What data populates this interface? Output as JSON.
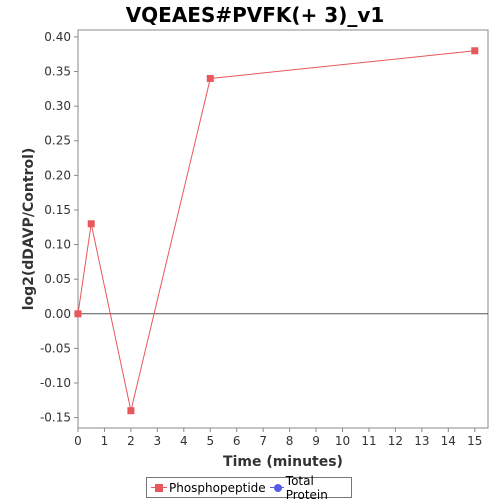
{
  "chart_data": {
    "type": "line",
    "title": "VQEAES#PVFK(+ 3)_v1",
    "xlabel": "Time (minutes)",
    "ylabel": "log2(dDAVP/Control)",
    "xlim": [
      0,
      15.5
    ],
    "ylim": [
      -0.165,
      0.41
    ],
    "xticks": [
      0,
      1,
      2,
      3,
      4,
      5,
      6,
      7,
      8,
      9,
      10,
      11,
      12,
      13,
      14,
      15
    ],
    "xtick_labels": [
      "0",
      "1",
      "2",
      "3",
      "4",
      "5",
      "6",
      "7",
      "8",
      "9",
      "10",
      "11",
      "12",
      "13",
      "14",
      "15"
    ],
    "yticks": [
      -0.15,
      -0.1,
      -0.05,
      0.0,
      0.05,
      0.1,
      0.15,
      0.2,
      0.25,
      0.3,
      0.35,
      0.4
    ],
    "ytick_labels": [
      "-0.15",
      "-0.10",
      "-0.05",
      "0.00",
      "0.05",
      "0.10",
      "0.15",
      "0.20",
      "0.25",
      "0.30",
      "0.35",
      "0.40"
    ],
    "zero_line": true,
    "grid": false,
    "legend_position": "bottom-center",
    "series": [
      {
        "name": "Phosphopeptide",
        "color": "#e8575a",
        "marker": "square",
        "x": [
          0,
          0.5,
          2,
          5,
          15
        ],
        "y": [
          0.0,
          0.13,
          -0.14,
          0.34,
          0.38
        ]
      },
      {
        "name": "Total Protein",
        "color": "#5a5ae8",
        "marker": "circle",
        "x": [],
        "y": []
      }
    ]
  }
}
